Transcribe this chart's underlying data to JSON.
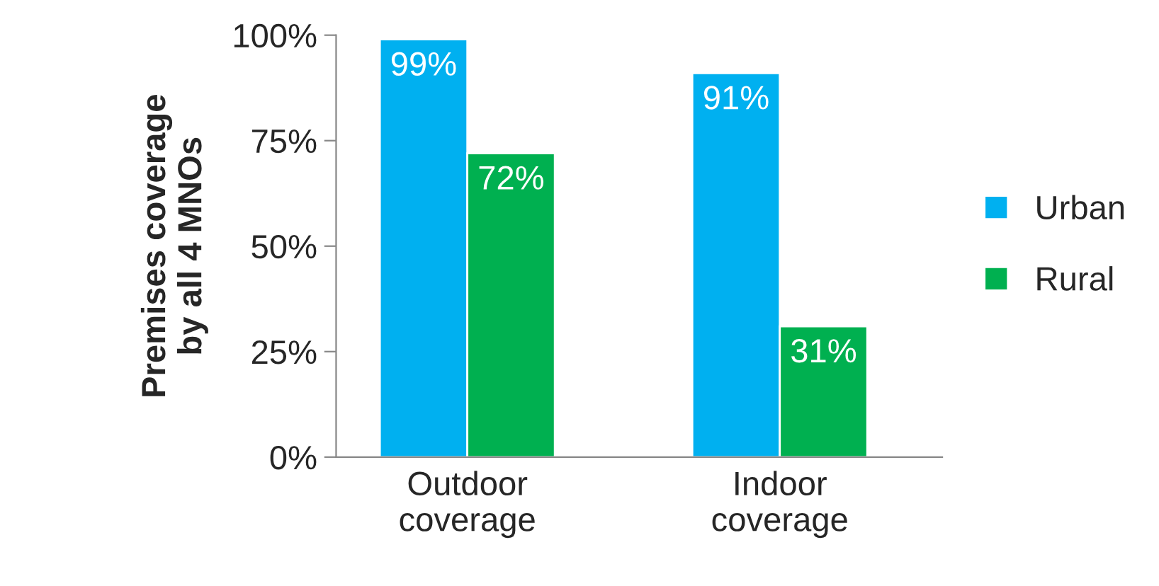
{
  "chart_data": {
    "type": "bar",
    "ylabel": "Premises coverage\nby all 4 MNOs",
    "categories": [
      "Outdoor\ncoverage",
      "Indoor\ncoverage"
    ],
    "series": [
      {
        "name": "Urban",
        "color": "#00b0f0",
        "values": [
          99,
          91
        ],
        "value_labels": [
          "99%",
          "91%"
        ]
      },
      {
        "name": "Rural",
        "color": "#00b050",
        "values": [
          72,
          31
        ],
        "value_labels": [
          "72%",
          "31%"
        ]
      }
    ],
    "ylim": [
      0,
      100
    ],
    "yticks": [
      {
        "value": 0,
        "label": "0%"
      },
      {
        "value": 25,
        "label": "25%"
      },
      {
        "value": 50,
        "label": "50%"
      },
      {
        "value": 75,
        "label": "75%"
      },
      {
        "value": 100,
        "label": "100%"
      }
    ],
    "grid": false,
    "legend": "right"
  }
}
